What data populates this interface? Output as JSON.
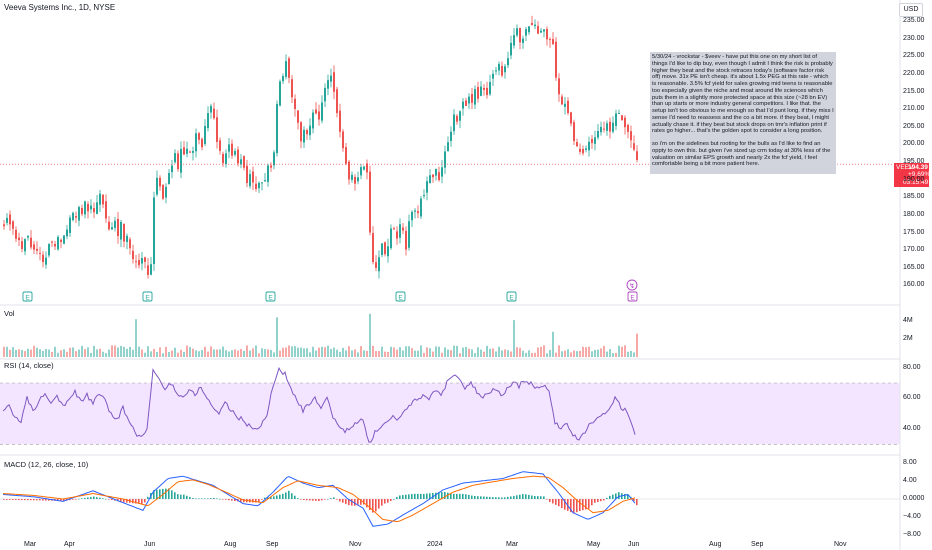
{
  "header": {
    "title": "Veeva Systems Inc., 1D, NYSE",
    "currency": "USD"
  },
  "annotation": {
    "paragraphs": [
      "5/30/24 - vrockstar - $veev - have put this one on my short list of things I'd like to dip buy, even though I admit I think the risk is probably higher they beat and the stock retraces today's (software factor risk off) move. 31x PE isn't cheap. it's about 1.5x PEG at this rate - which is reasonable. 3.5% fcf yield for sales growing mid teens is reasonable too especially given the niche and moat around life sciences which puts them in a slightly more protected space at this size (~28 bn EV) than up starts or more industry general competitors. I like that. the setup isn't too obvious to me enough so that I'd punt long. if they miss I sense I'd need to reassess and the co a bit more. if they beat, I might actually chase it. if they beat but stock drops on tmr's inflation print if rates go higher... that's the golden spot to consider a long position.",
      "so i'm on the sidelines but rooting for the bulls as I'd like to find an oppty to own this. but given i've sized up crm today at 30% less of the valuation on similar EPS growth and nearly 2x the fcf yield, I feel comfortable being a bit more patient here."
    ]
  },
  "price_badge": {
    "symbol": "VEEV",
    "price": "194.39",
    "change": "+9.69%",
    "countdown": "03:15:49",
    "color": "#f23645"
  },
  "colors": {
    "up": "#26a69a",
    "down": "#ef5350",
    "rsi": "#7e57c2",
    "rsi_band": "#f3e5ff",
    "macd": "#2962ff",
    "signal": "#ff6d00",
    "hist_up": "#26a69a",
    "hist_down": "#ef5350"
  },
  "panels": {
    "volume": {
      "title": "Vol",
      "ticks": [
        "4M",
        "2M"
      ]
    },
    "rsi": {
      "title": "RSI (14, close)",
      "ticks": [
        "80.00",
        "60.00",
        "40.00"
      ]
    },
    "macd": {
      "title": "MACD (12, 26, close, 10)",
      "ticks": [
        "8.00",
        "4.00",
        "0.0000",
        "−4.00",
        "−8.00"
      ]
    }
  },
  "earnings_markers": [
    "E",
    "E",
    "E",
    "E",
    "E",
    "E"
  ],
  "dividend_marker": "↯",
  "chart_data": {
    "type": "candlestick",
    "ylim": [
      157,
      237
    ],
    "price_ticks": [
      "235.00",
      "230.00",
      "225.00",
      "220.00",
      "215.00",
      "210.00",
      "205.00",
      "200.00",
      "195.00",
      "190.00",
      "185.00",
      "180.00",
      "175.00",
      "170.00",
      "165.00",
      "160.00"
    ],
    "x_ticks": [
      "Mar",
      "Apr",
      "Jun",
      "Aug",
      "Sep",
      "Nov",
      "2024",
      "Mar",
      "May",
      "Jun",
      "Aug",
      "Sep",
      "Nov"
    ],
    "last_price": 194.39,
    "close_series": [
      [
        0,
        178
      ],
      [
        3,
        179
      ],
      [
        6,
        177
      ],
      [
        9,
        176
      ],
      [
        12,
        174
      ],
      [
        15,
        173
      ],
      [
        18,
        170
      ],
      [
        21,
        173
      ],
      [
        24,
        175
      ],
      [
        27,
        172
      ],
      [
        30,
        169
      ],
      [
        33,
        170
      ],
      [
        36,
        168
      ],
      [
        39,
        166
      ],
      [
        42,
        168
      ],
      [
        45,
        171
      ],
      [
        48,
        173
      ],
      [
        51,
        172
      ],
      [
        54,
        174
      ],
      [
        57,
        173
      ],
      [
        60,
        175
      ],
      [
        63,
        177
      ],
      [
        66,
        179
      ],
      [
        69,
        181
      ],
      [
        72,
        180
      ],
      [
        75,
        182
      ],
      [
        78,
        181
      ],
      [
        81,
        184
      ],
      [
        84,
        182
      ],
      [
        87,
        183
      ],
      [
        90,
        180
      ],
      [
        93,
        183
      ],
      [
        96,
        185
      ],
      [
        99,
        183
      ],
      [
        102,
        180
      ],
      [
        105,
        175
      ],
      [
        108,
        176
      ],
      [
        111,
        178
      ],
      [
        114,
        174
      ],
      [
        117,
        177
      ],
      [
        120,
        173
      ],
      [
        123,
        175
      ],
      [
        126,
        171
      ],
      [
        129,
        168
      ],
      [
        132,
        166
      ],
      [
        135,
        165
      ],
      [
        138,
        167
      ],
      [
        141,
        166
      ],
      [
        144,
        164
      ],
      [
        147,
        165
      ],
      [
        150,
        184
      ],
      [
        153,
        190
      ],
      [
        156,
        187
      ],
      [
        159,
        185
      ],
      [
        162,
        189
      ],
      [
        165,
        192
      ],
      [
        168,
        194
      ],
      [
        171,
        197
      ],
      [
        174,
        193
      ],
      [
        177,
        199
      ],
      [
        180,
        196
      ],
      [
        183,
        198
      ],
      [
        186,
        197
      ],
      [
        189,
        199
      ],
      [
        192,
        203
      ],
      [
        195,
        201
      ],
      [
        198,
        200
      ],
      [
        201,
        206
      ],
      [
        204,
        208
      ],
      [
        207,
        210
      ],
      [
        210,
        208
      ],
      [
        213,
        200
      ],
      [
        216,
        197
      ],
      [
        219,
        195
      ],
      [
        222,
        198
      ],
      [
        225,
        200
      ],
      [
        228,
        196
      ],
      [
        231,
        198
      ],
      [
        234,
        195
      ],
      [
        237,
        196
      ],
      [
        240,
        193
      ],
      [
        243,
        190
      ],
      [
        246,
        191
      ],
      [
        249,
        189
      ],
      [
        252,
        187
      ],
      [
        255,
        188
      ],
      [
        258,
        190
      ],
      [
        261,
        191
      ],
      [
        264,
        193
      ],
      [
        267,
        194
      ],
      [
        270,
        198
      ],
      [
        273,
        212
      ],
      [
        276,
        218
      ],
      [
        279,
        220
      ],
      [
        282,
        224
      ],
      [
        285,
        218
      ],
      [
        288,
        214
      ],
      [
        291,
        210
      ],
      [
        294,
        206
      ],
      [
        297,
        202
      ],
      [
        300,
        205
      ],
      [
        303,
        203
      ],
      [
        306,
        206
      ],
      [
        309,
        208
      ],
      [
        312,
        209
      ],
      [
        315,
        206
      ],
      [
        318,
        211
      ],
      [
        321,
        215
      ],
      [
        324,
        218
      ],
      [
        327,
        219
      ],
      [
        330,
        214
      ],
      [
        333,
        208
      ],
      [
        336,
        204
      ],
      [
        339,
        198
      ],
      [
        342,
        195
      ],
      [
        345,
        190
      ],
      [
        348,
        192
      ],
      [
        351,
        189
      ],
      [
        354,
        191
      ],
      [
        357,
        193
      ],
      [
        360,
        194
      ],
      [
        363,
        193
      ],
      [
        366,
        175
      ],
      [
        369,
        166
      ],
      [
        372,
        164
      ],
      [
        375,
        167
      ],
      [
        378,
        171
      ],
      [
        381,
        170
      ],
      [
        384,
        172
      ],
      [
        387,
        175
      ],
      [
        390,
        176
      ],
      [
        393,
        174
      ],
      [
        396,
        177
      ],
      [
        399,
        175
      ],
      [
        402,
        170
      ],
      [
        405,
        178
      ],
      [
        408,
        180
      ],
      [
        411,
        182
      ],
      [
        414,
        181
      ],
      [
        417,
        184
      ],
      [
        420,
        186
      ],
      [
        423,
        189
      ],
      [
        426,
        191
      ],
      [
        429,
        190
      ],
      [
        432,
        194
      ],
      [
        435,
        191
      ],
      [
        438,
        193
      ],
      [
        441,
        197
      ],
      [
        444,
        200
      ],
      [
        447,
        203
      ],
      [
        450,
        208
      ],
      [
        453,
        206
      ],
      [
        456,
        210
      ],
      [
        459,
        213
      ],
      [
        462,
        211
      ],
      [
        465,
        214
      ],
      [
        468,
        212
      ],
      [
        471,
        215
      ],
      [
        474,
        213
      ],
      [
        477,
        216
      ],
      [
        480,
        215
      ],
      [
        483,
        214
      ],
      [
        486,
        217
      ],
      [
        489,
        219
      ],
      [
        492,
        221
      ],
      [
        495,
        223
      ],
      [
        498,
        220
      ],
      [
        501,
        222
      ],
      [
        504,
        225
      ],
      [
        507,
        228
      ],
      [
        510,
        230
      ],
      [
        513,
        232
      ],
      [
        516,
        229
      ],
      [
        519,
        231
      ],
      [
        522,
        233
      ],
      [
        525,
        234
      ],
      [
        528,
        235
      ],
      [
        531,
        233
      ],
      [
        534,
        231
      ],
      [
        537,
        232
      ],
      [
        540,
        233
      ],
      [
        543,
        231
      ],
      [
        546,
        230
      ],
      [
        549,
        229
      ],
      [
        552,
        218
      ],
      [
        555,
        214
      ],
      [
        558,
        211
      ],
      [
        561,
        212
      ],
      [
        564,
        208
      ],
      [
        567,
        206
      ],
      [
        570,
        202
      ],
      [
        573,
        200
      ],
      [
        576,
        198
      ],
      [
        579,
        197
      ],
      [
        582,
        199
      ],
      [
        585,
        201
      ],
      [
        588,
        200
      ],
      [
        591,
        202
      ],
      [
        594,
        203
      ],
      [
        597,
        204
      ],
      [
        600,
        204
      ],
      [
        603,
        205
      ],
      [
        606,
        204
      ],
      [
        609,
        206
      ],
      [
        612,
        208
      ],
      [
        615,
        209
      ],
      [
        618,
        207
      ],
      [
        621,
        206
      ],
      [
        624,
        204
      ],
      [
        627,
        202
      ],
      [
        630,
        198
      ],
      [
        633,
        194.4
      ]
    ],
    "volume_peaks": [
      [
        131,
        4.2
      ],
      [
        272,
        4.4
      ],
      [
        366,
        4.8
      ],
      [
        511,
        4.1
      ],
      [
        549,
        2.8
      ],
      [
        633,
        2.6
      ]
    ],
    "rsi_series": [
      [
        0,
        52
      ],
      [
        6,
        56
      ],
      [
        12,
        48
      ],
      [
        18,
        44
      ],
      [
        24,
        60
      ],
      [
        30,
        52
      ],
      [
        36,
        58
      ],
      [
        42,
        64
      ],
      [
        48,
        58
      ],
      [
        54,
        62
      ],
      [
        60,
        55
      ],
      [
        66,
        60
      ],
      [
        72,
        64
      ],
      [
        78,
        58
      ],
      [
        84,
        62
      ],
      [
        90,
        56
      ],
      [
        96,
        64
      ],
      [
        102,
        58
      ],
      [
        108,
        50
      ],
      [
        114,
        46
      ],
      [
        120,
        54
      ],
      [
        126,
        44
      ],
      [
        132,
        38
      ],
      [
        138,
        34
      ],
      [
        144,
        40
      ],
      [
        150,
        78
      ],
      [
        156,
        72
      ],
      [
        162,
        66
      ],
      [
        168,
        70
      ],
      [
        174,
        64
      ],
      [
        180,
        60
      ],
      [
        186,
        66
      ],
      [
        192,
        62
      ],
      [
        198,
        68
      ],
      [
        204,
        60
      ],
      [
        210,
        54
      ],
      [
        216,
        50
      ],
      [
        222,
        58
      ],
      [
        228,
        52
      ],
      [
        234,
        48
      ],
      [
        240,
        46
      ],
      [
        246,
        42
      ],
      [
        252,
        40
      ],
      [
        258,
        42
      ],
      [
        264,
        50
      ],
      [
        270,
        68
      ],
      [
        276,
        79
      ],
      [
        282,
        76
      ],
      [
        288,
        66
      ],
      [
        294,
        58
      ],
      [
        300,
        52
      ],
      [
        306,
        56
      ],
      [
        312,
        60
      ],
      [
        318,
        52
      ],
      [
        324,
        60
      ],
      [
        330,
        48
      ],
      [
        336,
        42
      ],
      [
        342,
        38
      ],
      [
        348,
        42
      ],
      [
        354,
        44
      ],
      [
        360,
        46
      ],
      [
        366,
        32
      ],
      [
        369,
        30
      ],
      [
        372,
        38
      ],
      [
        378,
        42
      ],
      [
        384,
        44
      ],
      [
        390,
        48
      ],
      [
        396,
        46
      ],
      [
        402,
        52
      ],
      [
        408,
        56
      ],
      [
        414,
        60
      ],
      [
        420,
        62
      ],
      [
        426,
        58
      ],
      [
        432,
        66
      ],
      [
        438,
        62
      ],
      [
        444,
        70
      ],
      [
        450,
        76
      ],
      [
        456,
        72
      ],
      [
        462,
        66
      ],
      [
        468,
        70
      ],
      [
        474,
        64
      ],
      [
        480,
        60
      ],
      [
        486,
        64
      ],
      [
        492,
        66
      ],
      [
        498,
        62
      ],
      [
        504,
        66
      ],
      [
        510,
        70
      ],
      [
        516,
        68
      ],
      [
        522,
        72
      ],
      [
        528,
        70
      ],
      [
        534,
        66
      ],
      [
        540,
        68
      ],
      [
        546,
        66
      ],
      [
        552,
        44
      ],
      [
        558,
        40
      ],
      [
        564,
        44
      ],
      [
        570,
        36
      ],
      [
        576,
        32
      ],
      [
        582,
        38
      ],
      [
        588,
        44
      ],
      [
        594,
        46
      ],
      [
        600,
        50
      ],
      [
        606,
        54
      ],
      [
        612,
        60
      ],
      [
        618,
        54
      ],
      [
        624,
        52
      ],
      [
        630,
        40
      ],
      [
        633,
        34
      ]
    ],
    "macd_series": [
      [
        0,
        1.0
      ],
      [
        30,
        0.5
      ],
      [
        60,
        -0.5
      ],
      [
        90,
        1.8
      ],
      [
        120,
        -0.8
      ],
      [
        140,
        -2.5
      ],
      [
        150,
        1.5
      ],
      [
        165,
        4.5
      ],
      [
        180,
        5.0
      ],
      [
        195,
        4.0
      ],
      [
        210,
        3.0
      ],
      [
        225,
        1.0
      ],
      [
        240,
        -1.0
      ],
      [
        255,
        -1.5
      ],
      [
        270,
        1.5
      ],
      [
        285,
        5.0
      ],
      [
        300,
        3.5
      ],
      [
        315,
        2.5
      ],
      [
        330,
        3.0
      ],
      [
        345,
        0.0
      ],
      [
        360,
        -2.0
      ],
      [
        370,
        -6.0
      ],
      [
        385,
        -5.5
      ],
      [
        400,
        -3.5
      ],
      [
        420,
        -1.0
      ],
      [
        440,
        2.0
      ],
      [
        460,
        3.5
      ],
      [
        480,
        4.0
      ],
      [
        500,
        4.5
      ],
      [
        520,
        6.0
      ],
      [
        540,
        5.5
      ],
      [
        555,
        1.5
      ],
      [
        570,
        -3.0
      ],
      [
        585,
        -4.5
      ],
      [
        600,
        -3.0
      ],
      [
        615,
        0.5
      ],
      [
        625,
        1.0
      ],
      [
        633,
        -1.2
      ]
    ],
    "signal_series": [
      [
        0,
        1.2
      ],
      [
        30,
        0.8
      ],
      [
        60,
        0.0
      ],
      [
        90,
        1.2
      ],
      [
        120,
        0.0
      ],
      [
        145,
        -1.5
      ],
      [
        160,
        1.0
      ],
      [
        175,
        3.8
      ],
      [
        190,
        4.2
      ],
      [
        205,
        3.2
      ],
      [
        220,
        1.8
      ],
      [
        240,
        -0.2
      ],
      [
        260,
        -0.8
      ],
      [
        280,
        2.5
      ],
      [
        295,
        4.0
      ],
      [
        315,
        3.0
      ],
      [
        335,
        2.5
      ],
      [
        350,
        1.0
      ],
      [
        365,
        -1.5
      ],
      [
        380,
        -4.5
      ],
      [
        395,
        -5.0
      ],
      [
        410,
        -3.5
      ],
      [
        430,
        -1.0
      ],
      [
        450,
        1.5
      ],
      [
        470,
        3.0
      ],
      [
        490,
        3.8
      ],
      [
        510,
        4.5
      ],
      [
        530,
        5.0
      ],
      [
        545,
        4.8
      ],
      [
        560,
        2.5
      ],
      [
        575,
        -0.5
      ],
      [
        590,
        -3.0
      ],
      [
        605,
        -2.5
      ],
      [
        620,
        -0.5
      ],
      [
        633,
        0.3
      ]
    ]
  }
}
